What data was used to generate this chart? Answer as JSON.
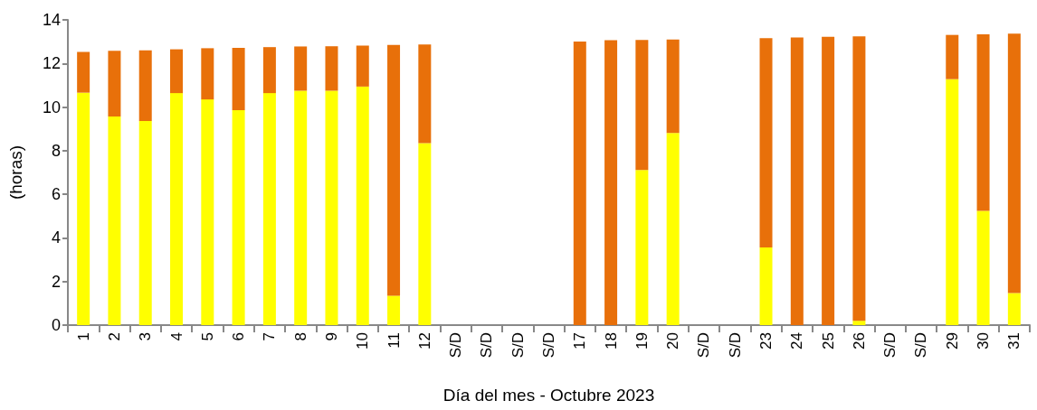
{
  "chart_data": {
    "type": "bar",
    "stacked": true,
    "xlabel": "Día del mes - Octubre 2023",
    "ylabel": "(horas)",
    "categories": [
      "1",
      "2",
      "3",
      "4",
      "5",
      "6",
      "7",
      "8",
      "9",
      "10",
      "11",
      "12",
      "S/D",
      "S/D",
      "S/D",
      "S/D",
      "17",
      "18",
      "19",
      "20",
      "S/D",
      "S/D",
      "23",
      "24",
      "25",
      "26",
      "S/D",
      "S/D",
      "29",
      "30",
      "31"
    ],
    "series": [
      {
        "color": "#ffff00",
        "values": [
          10.66,
          9.57,
          9.36,
          10.64,
          10.35,
          9.86,
          10.64,
          10.75,
          10.75,
          10.94,
          1.35,
          8.35,
          null,
          null,
          null,
          null,
          0,
          0,
          7.11,
          8.81,
          null,
          null,
          3.56,
          0,
          0,
          0.2,
          null,
          null,
          11.28,
          5.24,
          1.47
        ]
      },
      {
        "color": "#e8700a",
        "values": [
          1.87,
          3.01,
          3.24,
          2.01,
          2.35,
          2.86,
          2.11,
          2.03,
          2.04,
          1.88,
          11.5,
          4.52,
          null,
          null,
          null,
          null,
          13.01,
          13.07,
          5.97,
          4.29,
          null,
          null,
          9.6,
          13.19,
          13.22,
          13.04,
          null,
          null,
          2.03,
          8.1,
          11.9
        ]
      }
    ],
    "ylim": [
      0,
      14
    ],
    "yticks": [
      0,
      2,
      4,
      6,
      8,
      10,
      12,
      14
    ],
    "grid": false
  }
}
